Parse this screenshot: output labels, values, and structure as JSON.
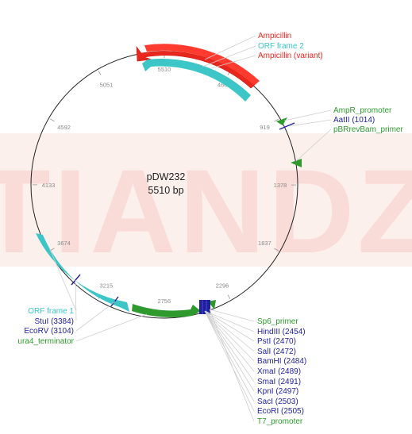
{
  "plasmid": {
    "name": "pDW232",
    "size_label": "5510 bp",
    "total_bp": 5510
  },
  "ticks": [
    {
      "bp": 460,
      "label": "460"
    },
    {
      "bp": 919,
      "label": "919"
    },
    {
      "bp": 1378,
      "label": "1378"
    },
    {
      "bp": 1837,
      "label": "1837"
    },
    {
      "bp": 2296,
      "label": "2296"
    },
    {
      "bp": 2756,
      "label": "2756"
    },
    {
      "bp": 3215,
      "label": "3215"
    },
    {
      "bp": 3674,
      "label": "3674"
    },
    {
      "bp": 4133,
      "label": "4133"
    },
    {
      "bp": 4592,
      "label": "4592"
    },
    {
      "bp": 5051,
      "label": "5051"
    },
    {
      "bp": 5510,
      "label": "5510"
    }
  ],
  "features": {
    "ampicillin": {
      "label": "Ampicillin",
      "color": "#e8281e"
    },
    "orf_frame_2": {
      "label": "ORF frame 2",
      "color": "#3cc6c8"
    },
    "ampicillin_variant": {
      "label": "Ampicillin (variant)",
      "color": "#e8281e"
    },
    "ampr_promoter": {
      "label": "AmpR_promoter",
      "color": "#2e9a2e"
    },
    "aatii": {
      "label": "AatII (1014)",
      "color": "#1f1f9c"
    },
    "pbrrevbam_primer": {
      "label": "pBRrevBam_primer",
      "color": "#2e9a2e"
    },
    "orf_frame_1": {
      "label": "ORF frame 1",
      "color": "#3cc6c8"
    },
    "stui": {
      "label": "StuI (3384)",
      "color": "#1f1f9c"
    },
    "ecorv": {
      "label": "EcoRV (3104)",
      "color": "#1f1f9c"
    },
    "ura4_terminator": {
      "label": "ura4_terminator",
      "color": "#2e9a2e"
    },
    "sp6_primer": {
      "label": "Sp6_primer",
      "color": "#2e9a2e"
    },
    "hindiii": {
      "label": "HindIII (2454)",
      "color": "#1f1f9c"
    },
    "psti": {
      "label": "PstI (2470)",
      "color": "#1f1f9c"
    },
    "sali": {
      "label": "SalI (2472)",
      "color": "#1f1f9c"
    },
    "bamhi": {
      "label": "BamHI (2484)",
      "color": "#1f1f9c"
    },
    "xmai": {
      "label": "XmaI (2489)",
      "color": "#1f1f9c"
    },
    "smai": {
      "label": "SmaI (2491)",
      "color": "#1f1f9c"
    },
    "kpni": {
      "label": "KpnI (2497)",
      "color": "#1f1f9c"
    },
    "saci": {
      "label": "SacI (2503)",
      "color": "#1f1f9c"
    },
    "ecori": {
      "label": "EcoRI (2505)",
      "color": "#1f1f9c"
    },
    "t7_promoter": {
      "label": "T7_promoter",
      "color": "#2e9a2e"
    }
  },
  "watermark": {
    "text": "TIANDZ"
  }
}
